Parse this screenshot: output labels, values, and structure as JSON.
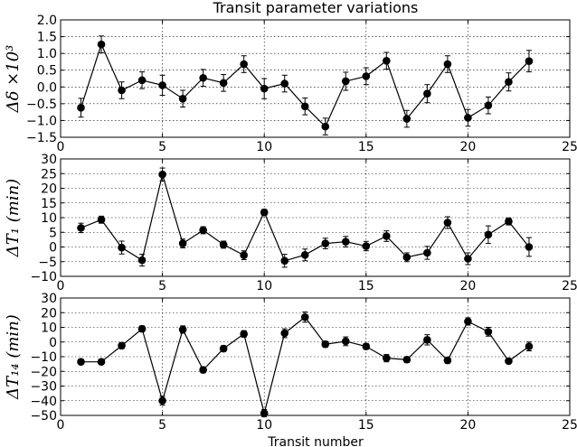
{
  "figure": {
    "title": "Transit parameter variations",
    "xlabel": "Transit number"
  },
  "chart_data": [
    {
      "type": "scatter",
      "name": "delta",
      "ylabel": "Δδ ×10³",
      "xlim": [
        0,
        25
      ],
      "ylim": [
        -1.5,
        2.0
      ],
      "xticks": [
        0,
        5,
        10,
        15,
        20,
        25
      ],
      "yticks": [
        -1.5,
        -1.0,
        -0.5,
        0.0,
        0.5,
        1.0,
        1.5,
        2.0
      ],
      "ytick_labels": [
        "−1.5",
        "−1.0",
        "−0.5",
        "0.0",
        "0.5",
        "1.0",
        "1.5",
        "2.0"
      ],
      "show_xtick_labels": true,
      "grid": true,
      "x": [
        1,
        2,
        3,
        4,
        5,
        6,
        7,
        8,
        9,
        10,
        11,
        12,
        13,
        14,
        15,
        16,
        17,
        18,
        19,
        20,
        21,
        22,
        23
      ],
      "y": [
        -0.62,
        1.27,
        -0.1,
        0.2,
        0.05,
        -0.35,
        0.27,
        0.12,
        0.68,
        -0.05,
        0.1,
        -0.58,
        -1.18,
        0.17,
        0.32,
        0.78,
        -0.95,
        -0.2,
        0.68,
        -0.92,
        -0.55,
        0.15,
        0.77
      ],
      "yerr": [
        0.28,
        0.25,
        0.25,
        0.25,
        0.3,
        0.25,
        0.25,
        0.25,
        0.25,
        0.3,
        0.25,
        0.25,
        0.25,
        0.27,
        0.25,
        0.25,
        0.25,
        0.27,
        0.25,
        0.25,
        0.25,
        0.27,
        0.32
      ]
    },
    {
      "type": "scatter",
      "name": "t1",
      "ylabel": "ΔT₁ (min)",
      "xlim": [
        0,
        25
      ],
      "ylim": [
        -10,
        30
      ],
      "xticks": [
        0,
        5,
        10,
        15,
        20,
        25
      ],
      "yticks": [
        -10,
        -5,
        0,
        5,
        10,
        15,
        20,
        25,
        30
      ],
      "ytick_labels": [
        "−10",
        "−5",
        "0",
        "5",
        "10",
        "15",
        "20",
        "25",
        "30"
      ],
      "show_xtick_labels": true,
      "grid": true,
      "x": [
        1,
        2,
        3,
        4,
        5,
        6,
        7,
        8,
        9,
        10,
        11,
        12,
        13,
        14,
        15,
        16,
        17,
        18,
        19,
        20,
        21,
        22,
        23
      ],
      "y": [
        6.5,
        9.3,
        -0.2,
        -4.5,
        24.7,
        1.2,
        5.7,
        0.8,
        -2.8,
        11.8,
        -4.7,
        -2.7,
        1.2,
        1.8,
        0.3,
        3.7,
        -3.5,
        -2.0,
        8.3,
        -4.0,
        4.2,
        8.7,
        0.0
      ],
      "yerr": [
        1.6,
        1.2,
        2.2,
        2.0,
        2.2,
        1.5,
        1.2,
        1.2,
        1.5,
        1.0,
        2.2,
        2.0,
        1.8,
        1.8,
        1.6,
        1.8,
        1.5,
        2.2,
        2.0,
        2.0,
        3.0,
        1.2,
        3.2
      ]
    },
    {
      "type": "scatter",
      "name": "t14",
      "ylabel": "ΔT₁₄ (min)",
      "xlim": [
        0,
        25
      ],
      "ylim": [
        -50,
        30
      ],
      "xticks": [
        0,
        5,
        10,
        15,
        20,
        25
      ],
      "yticks": [
        -50,
        -40,
        -30,
        -20,
        -10,
        0,
        10,
        20,
        30
      ],
      "ytick_labels": [
        "−50",
        "−40",
        "−30",
        "−20",
        "−10",
        "0",
        "10",
        "20",
        "30"
      ],
      "show_xtick_labels": true,
      "grid": true,
      "x": [
        1,
        2,
        3,
        4,
        5,
        6,
        7,
        8,
        9,
        10,
        11,
        12,
        13,
        14,
        15,
        16,
        17,
        18,
        19,
        20,
        21,
        22,
        23
      ],
      "y": [
        -13.5,
        -13.5,
        -2.5,
        9.0,
        -40.0,
        8.5,
        -19.0,
        -4.5,
        5.5,
        -48.5,
        6.0,
        17.0,
        -1.5,
        0.5,
        -3.0,
        -11.0,
        -12.0,
        1.5,
        -12.5,
        14.0,
        7.0,
        -13.0,
        -3.0
      ],
      "yerr": [
        1.8,
        1.8,
        2.0,
        2.0,
        3.0,
        2.5,
        2.0,
        2.0,
        2.2,
        2.5,
        3.0,
        3.5,
        2.0,
        3.0,
        2.0,
        2.5,
        2.0,
        3.5,
        2.0,
        2.5,
        3.0,
        1.5,
        3.0
      ]
    }
  ]
}
